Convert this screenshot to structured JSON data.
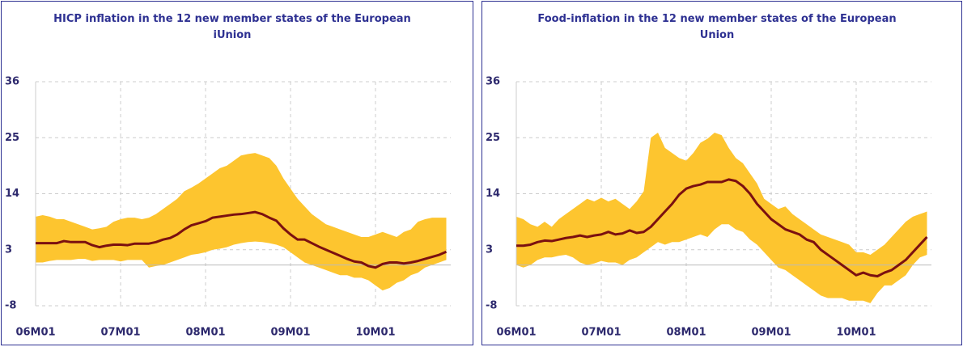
{
  "chart_data": [
    {
      "type": "band-line",
      "title": "HICP inflation in the 12 new member states of the European iUnion",
      "categories": [
        "06M01",
        null,
        null,
        null,
        null,
        null,
        null,
        null,
        null,
        null,
        null,
        null,
        "07M01",
        null,
        null,
        null,
        null,
        null,
        null,
        null,
        null,
        null,
        null,
        null,
        "08M01",
        null,
        null,
        null,
        null,
        null,
        null,
        null,
        null,
        null,
        null,
        null,
        "09M01",
        null,
        null,
        null,
        null,
        null,
        null,
        null,
        null,
        null,
        null,
        null,
        "10M01",
        null,
        null,
        null,
        null,
        null,
        null,
        null,
        null,
        null,
        null
      ],
      "band": {
        "color": "#fdc52f",
        "upper": [
          9.5,
          9.8,
          9.5,
          9,
          9,
          8.5,
          8,
          7.5,
          7,
          7.2,
          7.5,
          8.5,
          9,
          9.3,
          9.3,
          9,
          9.3,
          10,
          11,
          12,
          13,
          14.5,
          15.2,
          16,
          17,
          18,
          19,
          19.5,
          20.5,
          21.5,
          21.8,
          22,
          21.5,
          21,
          19.5,
          17,
          15,
          13,
          11.5,
          10,
          9,
          8,
          7.5,
          7,
          6.5,
          6,
          5.5,
          5.5,
          6,
          6.5,
          6,
          5.5,
          6.5,
          7,
          8.5,
          9,
          9.3,
          9.3,
          9.3
        ],
        "lower": [
          0.5,
          0.5,
          0.8,
          1,
          1,
          1,
          1.2,
          1.2,
          0.8,
          1,
          1,
          1,
          0.7,
          1,
          1,
          1,
          -0.5,
          -0.2,
          0,
          0.5,
          1,
          1.5,
          2,
          2.2,
          2.5,
          3,
          3.2,
          3.5,
          4,
          4.3,
          4.5,
          4.6,
          4.5,
          4.3,
          4,
          3.5,
          2.5,
          1.5,
          0.5,
          0,
          -0.5,
          -1,
          -1.5,
          -2,
          -2,
          -2.5,
          -2.5,
          -3,
          -4,
          -5,
          -4.5,
          -3.5,
          -3,
          -2,
          -1.5,
          -0.5,
          0,
          0.5,
          1
        ]
      },
      "series": [
        {
          "color": "#7b1010",
          "values": [
            4.3,
            4.3,
            4.3,
            4.3,
            4.7,
            4.5,
            4.5,
            4.5,
            3.9,
            3.5,
            3.8,
            4,
            4,
            3.9,
            4.2,
            4.2,
            4.2,
            4.5,
            5,
            5.3,
            6,
            7,
            7.8,
            8.2,
            8.6,
            9.3,
            9.5,
            9.7,
            9.9,
            10,
            10.2,
            10.4,
            10,
            9.3,
            8.7,
            7.2,
            6,
            5,
            5,
            4.3,
            3.6,
            3,
            2.4,
            1.8,
            1.2,
            0.7,
            0.5,
            -0.2,
            -0.5,
            0.2,
            0.5,
            0.5,
            0.3,
            0.5,
            0.8,
            1.2,
            1.6,
            2,
            2.6
          ]
        }
      ],
      "ylim": [
        -8,
        36
      ],
      "yticks": [
        -8,
        3,
        14,
        25,
        36
      ],
      "grid": true
    },
    {
      "type": "band-line",
      "title": "Food-inflation in the 12 new member states of the European Union",
      "categories": [
        "06M01",
        null,
        null,
        null,
        null,
        null,
        null,
        null,
        null,
        null,
        null,
        null,
        "07M01",
        null,
        null,
        null,
        null,
        null,
        null,
        null,
        null,
        null,
        null,
        null,
        "08M01",
        null,
        null,
        null,
        null,
        null,
        null,
        null,
        null,
        null,
        null,
        null,
        "09M01",
        null,
        null,
        null,
        null,
        null,
        null,
        null,
        null,
        null,
        null,
        null,
        "10M01",
        null,
        null,
        null,
        null,
        null,
        null,
        null,
        null,
        null,
        null
      ],
      "band": {
        "color": "#fdc52f",
        "upper": [
          9.5,
          9,
          8,
          7.5,
          8.5,
          7.5,
          9,
          10,
          11,
          12,
          13,
          12.5,
          13.2,
          12.5,
          13,
          12,
          11,
          12.5,
          14.5,
          25,
          26,
          23,
          22,
          21,
          20.5,
          22,
          24,
          24.8,
          26,
          25.5,
          23,
          21,
          20,
          18,
          16,
          13,
          12,
          11,
          11.5,
          10,
          9,
          8,
          7,
          6,
          5.5,
          5,
          4.5,
          4,
          2.5,
          2.5,
          2,
          3,
          4,
          5.5,
          7,
          8.5,
          9.5,
          10,
          10.5
        ],
        "lower": [
          0,
          -0.5,
          0,
          1,
          1.5,
          1.5,
          1.8,
          2,
          1.5,
          0.5,
          0,
          0.3,
          0.8,
          0.5,
          0.5,
          0,
          1,
          1.5,
          2.5,
          3.5,
          4.5,
          4,
          4.5,
          4.5,
          5,
          5.5,
          6,
          5.5,
          7,
          8,
          8,
          7,
          6.5,
          5,
          4,
          2.5,
          1,
          -0.5,
          -1,
          -2,
          -3,
          -4,
          -5,
          -6,
          -6.5,
          -6.5,
          -6.5,
          -7,
          -7,
          -7,
          -7.5,
          -5.5,
          -4,
          -4,
          -3,
          -2,
          0,
          1.5,
          2
        ]
      },
      "series": [
        {
          "color": "#7b1010",
          "values": [
            3.8,
            3.8,
            4,
            4.5,
            4.8,
            4.7,
            5,
            5.3,
            5.5,
            5.8,
            5.5,
            5.8,
            6,
            6.5,
            6,
            6.2,
            6.8,
            6.3,
            6.5,
            7.5,
            9,
            10.5,
            12,
            13.8,
            15,
            15.5,
            15.8,
            16.3,
            16.3,
            16.3,
            16.8,
            16.5,
            15.5,
            14,
            12,
            10.5,
            9,
            8,
            7,
            6.5,
            6,
            5,
            4.5,
            3,
            2,
            1,
            0,
            -1,
            -2,
            -1.5,
            -2,
            -2.2,
            -1.5,
            -1,
            0,
            1,
            2.5,
            4,
            5.5
          ]
        }
      ],
      "ylim": [
        -8,
        36
      ],
      "yticks": [
        -8,
        3,
        14,
        25,
        36
      ],
      "grid": true
    }
  ]
}
